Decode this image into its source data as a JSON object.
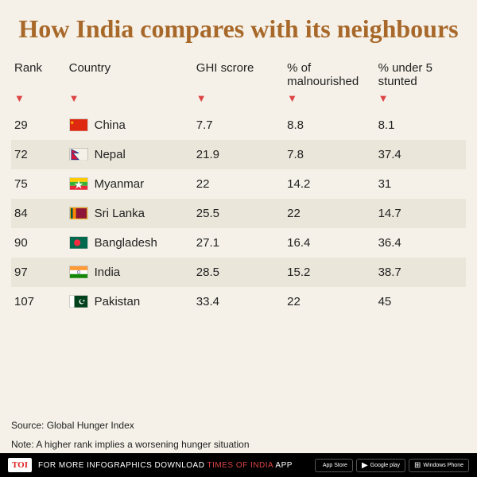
{
  "title": "How India compares with its neighbours",
  "columns": [
    "Rank",
    "Country",
    "GHI scrore",
    "% of malnourished",
    "% under 5 stunted"
  ],
  "rows": [
    {
      "rank": "29",
      "country": "China",
      "ghi": "7.7",
      "mal": "8.8",
      "stunt": "8.1",
      "flag": "china"
    },
    {
      "rank": "72",
      "country": "Nepal",
      "ghi": "21.9",
      "mal": "7.8",
      "stunt": "37.4",
      "flag": "nepal"
    },
    {
      "rank": "75",
      "country": "Myanmar",
      "ghi": "22",
      "mal": "14.2",
      "stunt": "31",
      "flag": "myanmar"
    },
    {
      "rank": "84",
      "country": "Sri Lanka",
      "ghi": "25.5",
      "mal": "22",
      "stunt": "14.7",
      "flag": "srilanka"
    },
    {
      "rank": "90",
      "country": "Bangladesh",
      "ghi": " 27.1",
      "mal": "16.4",
      "stunt": "36.4",
      "flag": "bangladesh"
    },
    {
      "rank": "97",
      "country": "India",
      "ghi": "28.5",
      "mal": "15.2",
      "stunt": "38.7",
      "flag": "india"
    },
    {
      "rank": "107",
      "country": "Pakistan",
      "ghi": "33.4",
      "mal": "22",
      "stunt": "45",
      "flag": "pakistan"
    }
  ],
  "source": "Source: Global Hunger Index",
  "note": "Note: A higher rank implies a worsening hunger situation",
  "footer": {
    "prefix": "FOR MORE  INFOGRAPHICS DOWNLOAD ",
    "highlight": "TIMES OF INDIA ",
    "suffix": "APP",
    "toi": "TOI",
    "stores": [
      "App Store",
      "Google play",
      "Windows Phone"
    ]
  },
  "colors": {
    "title": "#a8682a",
    "bg": "#f5f1e8",
    "row_alt": "#ebe6da",
    "arrow": "#d44"
  }
}
